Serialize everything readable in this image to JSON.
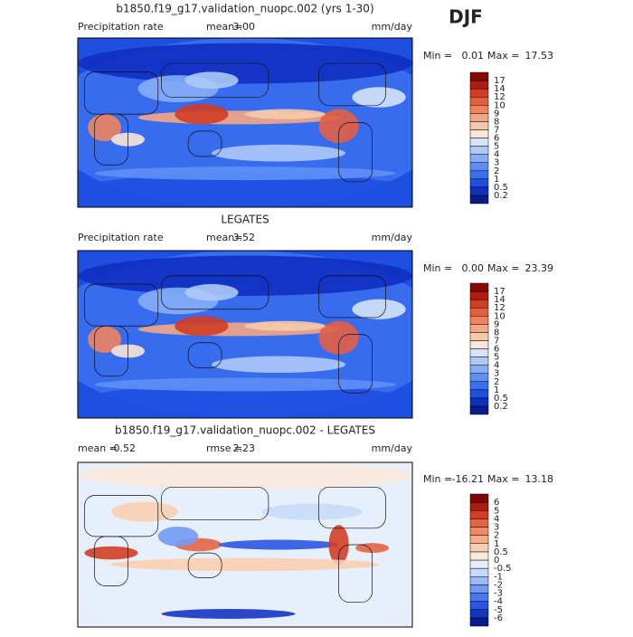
{
  "season": "DJF",
  "panels": [
    {
      "title": "b1850.f19_g17.validation_nuopc.002 (yrs 1-30)",
      "stats": [
        {
          "label": "Precipitation rate",
          "value": ""
        }
      ],
      "variable": "Precipitation rate",
      "stat_label": "mean=",
      "stat_value": "3.00",
      "units": "mm/day",
      "min_label": "Min =",
      "min": "0.01",
      "max_label": "Max =",
      "max": "17.53",
      "colorbar": [
        "0.2",
        "0.5",
        "1",
        "2",
        "3",
        "4",
        "5",
        "6",
        "7",
        "8",
        "9",
        "10",
        "12",
        "14",
        "17"
      ]
    },
    {
      "title": "LEGATES",
      "variable": "Precipitation rate",
      "stat_label": "mean=",
      "stat_value": "3.52",
      "units": "mm/day",
      "min_label": "Min =",
      "min": "0.00",
      "max_label": "Max =",
      "max": "23.39",
      "colorbar": [
        "0.2",
        "0.5",
        "1",
        "2",
        "3",
        "4",
        "5",
        "6",
        "7",
        "8",
        "9",
        "10",
        "12",
        "14",
        "17"
      ]
    },
    {
      "title": "b1850.f19_g17.validation_nuopc.002 - LEGATES",
      "variable": "mean =",
      "stat_label": "rmse =",
      "stat_value": "2.23",
      "mean_value": "-0.52",
      "units": "mm/day",
      "min_label": "Min =",
      "min": "-16.21",
      "max_label": "Max =",
      "max": "13.18",
      "colorbar": [
        "-6",
        "-5",
        "-4",
        "-3",
        "-2",
        "-1",
        "-0.5",
        "0",
        "0.5",
        "1",
        "2",
        "3",
        "4",
        "5",
        "6"
      ]
    }
  ]
}
